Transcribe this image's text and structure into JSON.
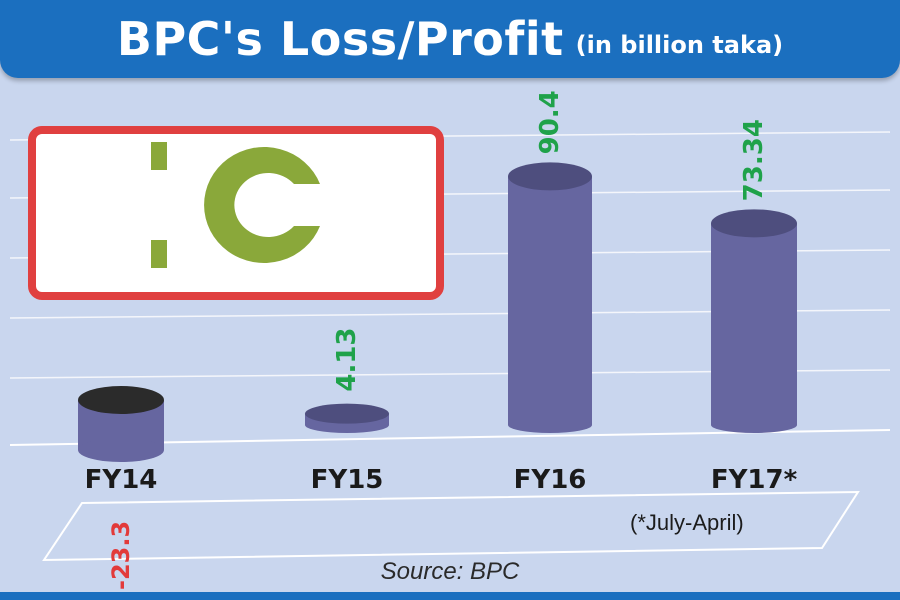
{
  "title": "BPC's Loss/Profit",
  "subtitle": "(in billion taka)",
  "footnote": "(*July-April)",
  "source": "Source: BPC",
  "colors": {
    "title_bar": "#1b6fbf",
    "background": "#c9d6ee",
    "bar": "#6666a0",
    "profit_label": "#1fa24a",
    "loss_label": "#e23a3a",
    "logo_border": "#e04040",
    "logo_mark": "#8aa83a"
  },
  "chart_data": {
    "type": "bar",
    "categories": [
      "FY14",
      "FY15",
      "FY16",
      "FY17*"
    ],
    "values": [
      -23.3,
      4.13,
      90.4,
      73.34
    ],
    "value_labels": [
      "-23.3",
      "4.13",
      "90.4",
      "73.34"
    ],
    "xlabel": "",
    "ylabel": "",
    "grid": true
  }
}
